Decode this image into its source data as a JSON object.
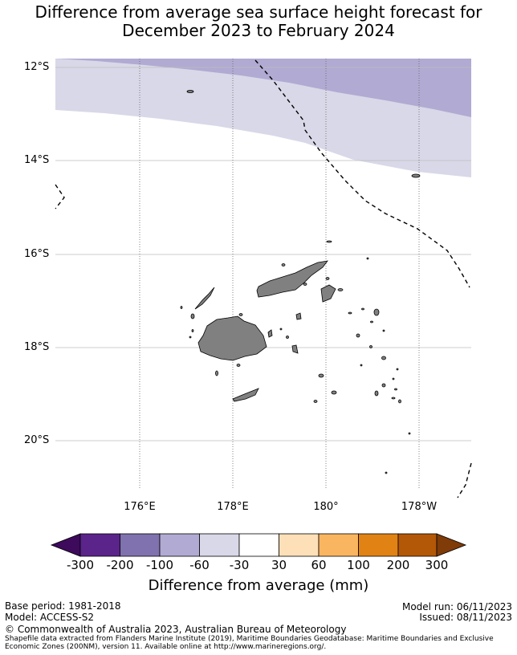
{
  "title": {
    "line1": "Difference from average sea surface height forecast for",
    "line2": "December 2023 to February 2024"
  },
  "map": {
    "lat_labels": [
      "12°S",
      "14°S",
      "16°S",
      "18°S",
      "20°S"
    ],
    "lon_labels": [
      "176°E",
      "178°E",
      "180°",
      "178°W"
    ],
    "land_color": "#808080",
    "zone_colors": {
      "band_-60_-30": "#d8d8e8",
      "band_-100_-60": "#b1aad2"
    }
  },
  "colorbar": {
    "label": "Difference from average (mm)",
    "ticks": [
      "-300",
      "-200",
      "-100",
      "-60",
      "-30",
      "30",
      "60",
      "100",
      "200",
      "300"
    ],
    "colors": [
      "#3d0a5c",
      "#5a248a",
      "#7f72ae",
      "#b1aad2",
      "#d8d8e8",
      "#ffffff",
      "#fde0b8",
      "#f9b560",
      "#e08214",
      "#b35806",
      "#7f3b08"
    ]
  },
  "footer": {
    "base_period": "Base period: 1981-2018",
    "model": "Model: ACCESS-S2",
    "model_run": "Model run: 06/11/2023",
    "issued": "Issued: 08/11/2023",
    "copyright": "© Commonwealth of Australia 2023, Australian Bureau of Meteorology",
    "shapefile_1": "Shapefile data extracted from Flanders Marine Institute (2019), Maritime Boundaries Geodatabase: Maritime Boundaries and Exclusive",
    "shapefile_2": "Economic Zones (200NM), version 11. Available online at http://www.marineregions.org/."
  }
}
